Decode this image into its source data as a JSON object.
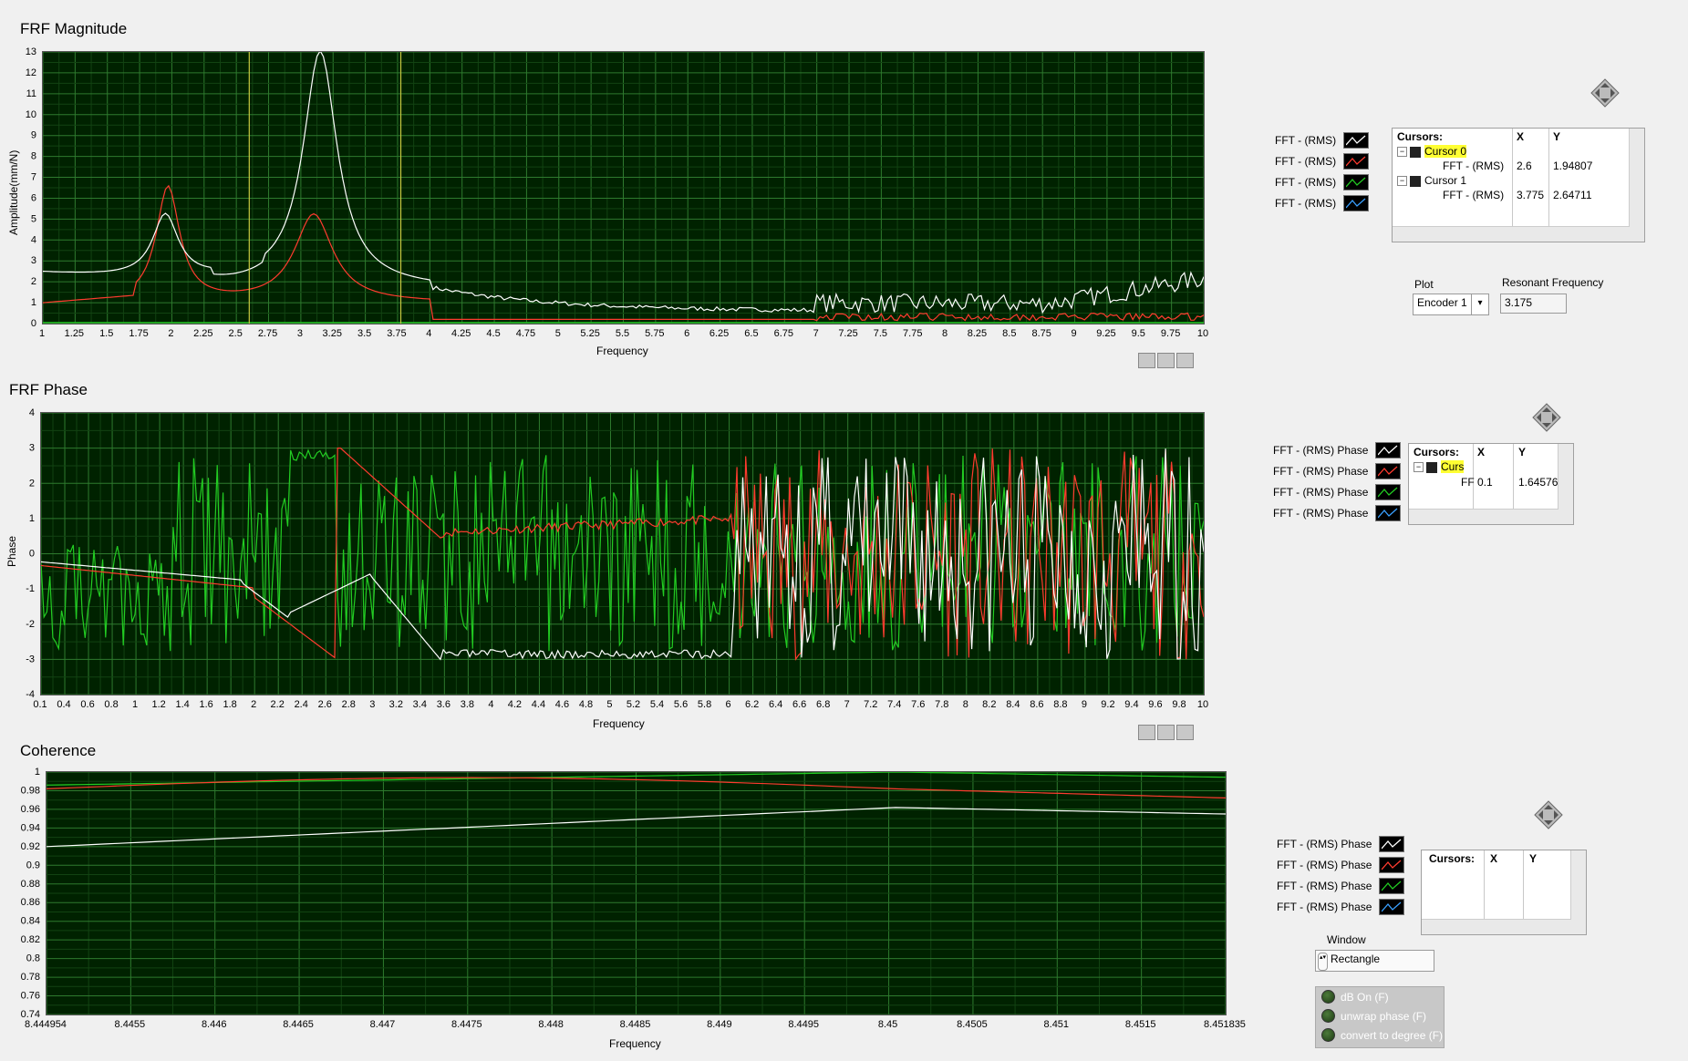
{
  "colors": {
    "plot_bg": "#002200",
    "grid_major": "#2e7a2e",
    "grid_minor": "#124312",
    "cursor_line": "#c8c840",
    "series_white": "#ffffff",
    "series_red": "#ff3b2f",
    "series_green": "#22cc22",
    "series_blue": "#3aa0ff"
  },
  "magnitude": {
    "title": "FRF Magnitude",
    "xlabel": "Frequency",
    "ylabel": "Amplitude(mm/N)",
    "x_ticks": [
      "1",
      "1.25",
      "1.5",
      "1.75",
      "2",
      "2.25",
      "2.5",
      "2.75",
      "3",
      "3.25",
      "3.5",
      "3.75",
      "4",
      "4.25",
      "4.5",
      "4.75",
      "5",
      "5.25",
      "5.5",
      "5.75",
      "6",
      "6.25",
      "6.5",
      "6.75",
      "7",
      "7.25",
      "7.5",
      "7.75",
      "8",
      "8.25",
      "8.5",
      "8.75",
      "9",
      "9.25",
      "9.5",
      "9.75",
      "10"
    ],
    "y_ticks": [
      "0",
      "1",
      "2",
      "3",
      "4",
      "5",
      "6",
      "7",
      "8",
      "9",
      "10",
      "11",
      "12",
      "13"
    ],
    "legend": [
      "FFT - (RMS)",
      "FFT - (RMS)",
      "FFT - (RMS)",
      "FFT - (RMS)"
    ],
    "cursors": {
      "header": "Cursors:",
      "x_header": "X",
      "y_header": "Y",
      "rows": [
        {
          "name": "Cursor 0",
          "plot": "FFT - (RMS)",
          "x": "2.6",
          "y": "1.94807"
        },
        {
          "name": "Cursor 1",
          "plot": "FFT - (RMS)",
          "x": "3.775",
          "y": "2.64711"
        }
      ]
    }
  },
  "controls": {
    "plot_label": "Plot",
    "plot_value": "Encoder 1",
    "resonant_label": "Resonant Frequency",
    "resonant_value": "3.175"
  },
  "phase": {
    "title": "FRF Phase",
    "xlabel": "Frequency",
    "ylabel": "Phase",
    "x_ticks": [
      "0.1",
      "0.4",
      "0.6",
      "0.8",
      "1",
      "1.2",
      "1.4",
      "1.6",
      "1.8",
      "2",
      "2.2",
      "2.4",
      "2.6",
      "2.8",
      "3",
      "3.2",
      "3.4",
      "3.6",
      "3.8",
      "4",
      "4.2",
      "4.4",
      "4.6",
      "4.8",
      "5",
      "5.2",
      "5.4",
      "5.6",
      "5.8",
      "6",
      "6.2",
      "6.4",
      "6.6",
      "6.8",
      "7",
      "7.2",
      "7.4",
      "7.6",
      "7.8",
      "8",
      "8.2",
      "8.4",
      "8.6",
      "8.8",
      "9",
      "9.2",
      "9.4",
      "9.6",
      "9.8",
      "10"
    ],
    "y_ticks": [
      "-4",
      "-3",
      "-2",
      "-1",
      "0",
      "1",
      "2",
      "3",
      "4"
    ],
    "legend": [
      "FFT - (RMS) Phase",
      "FFT - (RMS) Phase",
      "FFT - (RMS) Phase",
      "FFT - (RMS) Phase"
    ],
    "cursors": {
      "header": "Cursors:",
      "x_header": "X",
      "y_header": "Y",
      "row_name": "Curs",
      "row_plot": "FF",
      "x": "0.1",
      "y": "1.64576"
    }
  },
  "coherence": {
    "title": "Coherence",
    "xlabel": "Frequency",
    "x_ticks": [
      "8.444954",
      "8.4455",
      "8.446",
      "8.4465",
      "8.447",
      "8.4475",
      "8.448",
      "8.4485",
      "8.449",
      "8.4495",
      "8.45",
      "8.4505",
      "8.451",
      "8.4515",
      "8.451835"
    ],
    "y_ticks": [
      "0.74",
      "0.76",
      "0.78",
      "0.8",
      "0.82",
      "0.84",
      "0.86",
      "0.88",
      "0.9",
      "0.92",
      "0.94",
      "0.96",
      "0.98",
      "1"
    ],
    "legend": [
      "FFT - (RMS) Phase",
      "FFT - (RMS) Phase",
      "FFT - (RMS) Phase",
      "FFT - (RMS) Phase"
    ],
    "cursors": {
      "header": "Cursors:",
      "x_header": "X",
      "y_header": "Y"
    }
  },
  "window": {
    "label": "Window",
    "value": "Rectangle"
  },
  "options": [
    "dB On (F)",
    "unwrap phase (F)",
    "convert to degree (F)"
  ]
}
